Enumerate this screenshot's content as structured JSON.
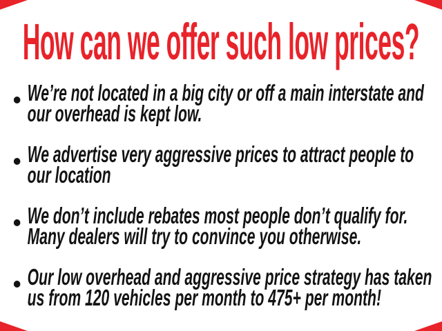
{
  "slide": {
    "background_color": "#ffffff",
    "accent_color": "#e8232a",
    "text_color": "#131313"
  },
  "headline": {
    "text": "How can we offer such low prices?",
    "color": "#e8232a"
  },
  "bullets": [
    {
      "lines": [
        "We’re not located in a big city or off a main interstate and",
        "our overhead is kept low."
      ]
    },
    {
      "lines": [
        "We advertise very aggressive prices to attract people to",
        "our location"
      ]
    },
    {
      "lines": [
        "We don’t include rebates most people don’t qualify for.",
        "Many dealers will try to convince you otherwise."
      ]
    },
    {
      "lines": [
        "Our low overhead and aggressive price strategy has taken",
        "us from 120 vehicles per month to 475+ per month!"
      ]
    }
  ]
}
